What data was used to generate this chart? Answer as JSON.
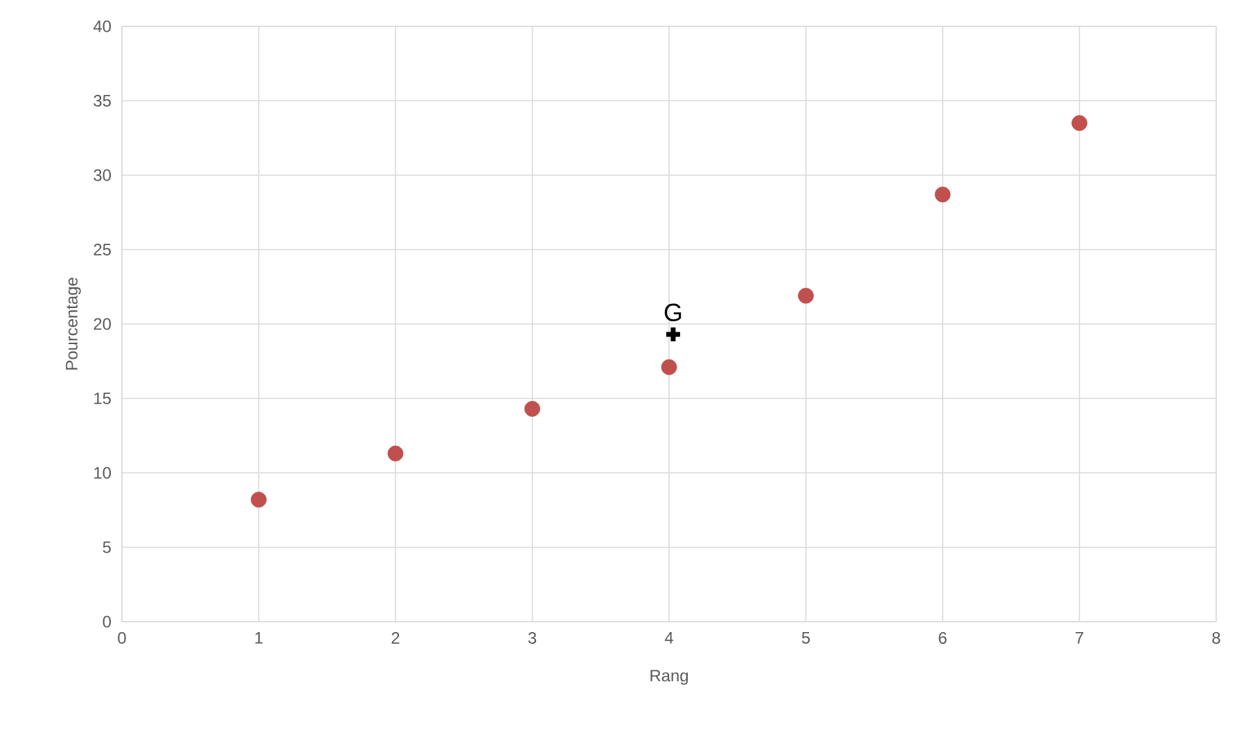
{
  "chart_data": {
    "type": "scatter",
    "xlabel": "Rang",
    "ylabel": "Pourcentage",
    "xlim": [
      0,
      8
    ],
    "xticks": [
      0,
      1,
      2,
      3,
      4,
      5,
      6,
      7,
      8
    ],
    "ylim": [
      0,
      40
    ],
    "yticks": [
      0,
      5,
      10,
      15,
      20,
      25,
      30,
      35,
      40
    ],
    "grid": true,
    "series": [
      {
        "color": "#c0504d",
        "marker": "circle",
        "x": [
          1,
          2,
          3,
          4,
          5,
          6,
          7
        ],
        "values": [
          8.2,
          11.3,
          14.3,
          17.1,
          21.9,
          28.7,
          33.5
        ]
      },
      {
        "name": "G",
        "color": "#000000",
        "marker": "cross",
        "x": [
          4.03
        ],
        "values": [
          19.3
        ]
      }
    ]
  }
}
